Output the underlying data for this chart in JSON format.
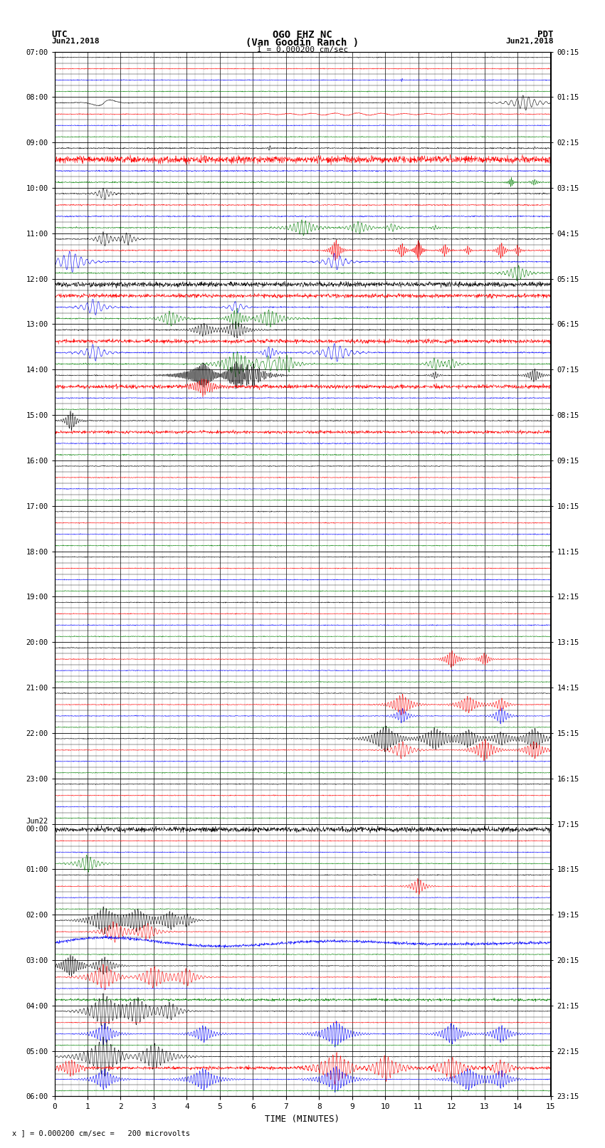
{
  "title_line1": "OGO EHZ NC",
  "title_line2": "(Van Goodin Ranch )",
  "title_line3": "I = 0.000200 cm/sec",
  "left_label_top": "UTC",
  "left_label_date": "Jun21,2018",
  "right_label_top": "PDT",
  "right_label_date": "Jun21,2018",
  "xlabel": "TIME (MINUTES)",
  "footer": "x ] = 0.000200 cm/sec =   200 microvolts",
  "num_rows": 92,
  "colors": [
    "black",
    "red",
    "blue",
    "green"
  ],
  "background_color": "white",
  "fig_width": 8.5,
  "fig_height": 16.13,
  "dpi": 100,
  "xmin": 0,
  "xmax": 15,
  "xticks": [
    0,
    1,
    2,
    3,
    4,
    5,
    6,
    7,
    8,
    9,
    10,
    11,
    12,
    13,
    14,
    15
  ],
  "utc_labels": [
    "07:00",
    "08:00",
    "09:00",
    "10:00",
    "11:00",
    "12:00",
    "13:00",
    "14:00",
    "15:00",
    "16:00",
    "17:00",
    "18:00",
    "19:00",
    "20:00",
    "21:00",
    "22:00",
    "23:00",
    "Jun22\n00:00",
    "01:00",
    "02:00",
    "03:00",
    "04:00",
    "05:00",
    "06:00"
  ],
  "pdt_labels": [
    "00:15",
    "01:15",
    "02:15",
    "03:15",
    "04:15",
    "05:15",
    "06:15",
    "07:15",
    "08:15",
    "09:15",
    "10:15",
    "11:15",
    "12:15",
    "13:15",
    "14:15",
    "15:15",
    "16:15",
    "17:15",
    "18:15",
    "19:15",
    "20:15",
    "21:15",
    "22:15",
    "23:15"
  ]
}
